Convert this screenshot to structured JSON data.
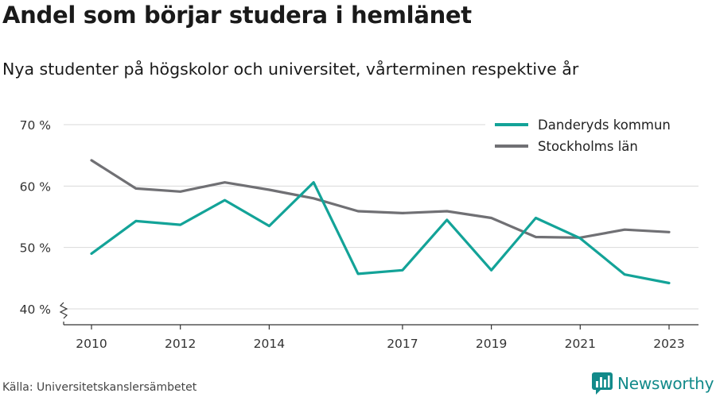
{
  "title": "Andel som börjar studera i hemlänet",
  "subtitle": "Nya studenter på högskolor och universitet, vårterminen respektive år",
  "source": "Källa: Universitetskanslersämbetet",
  "brand": {
    "name": "Newsworthy",
    "color": "#128a8a"
  },
  "chart_data": {
    "type": "line",
    "x": [
      2010,
      2011,
      2012,
      2013,
      2014,
      2015,
      2016,
      2017,
      2018,
      2019,
      2020,
      2021,
      2022,
      2023
    ],
    "x_ticks": [
      "2010",
      "2012",
      "2014",
      "2017",
      "2019",
      "2021",
      "2023"
    ],
    "y_ticks": [
      "40 %",
      "50 %",
      "60 %",
      "70 %"
    ],
    "ylim": [
      40,
      70
    ],
    "y_axis_break": true,
    "grid": true,
    "legend_position": "top-right",
    "series": [
      {
        "name": "Danderyds kommun",
        "color": "#13a398",
        "values": [
          49.0,
          54.3,
          53.7,
          57.7,
          53.5,
          60.6,
          45.7,
          46.3,
          54.5,
          46.3,
          54.8,
          51.5,
          45.6,
          44.2
        ]
      },
      {
        "name": "Stockholms län",
        "color": "#707074",
        "values": [
          64.2,
          59.6,
          59.1,
          60.6,
          59.4,
          58.0,
          55.9,
          55.6,
          55.9,
          54.8,
          51.7,
          51.6,
          52.9,
          52.5
        ]
      }
    ]
  }
}
